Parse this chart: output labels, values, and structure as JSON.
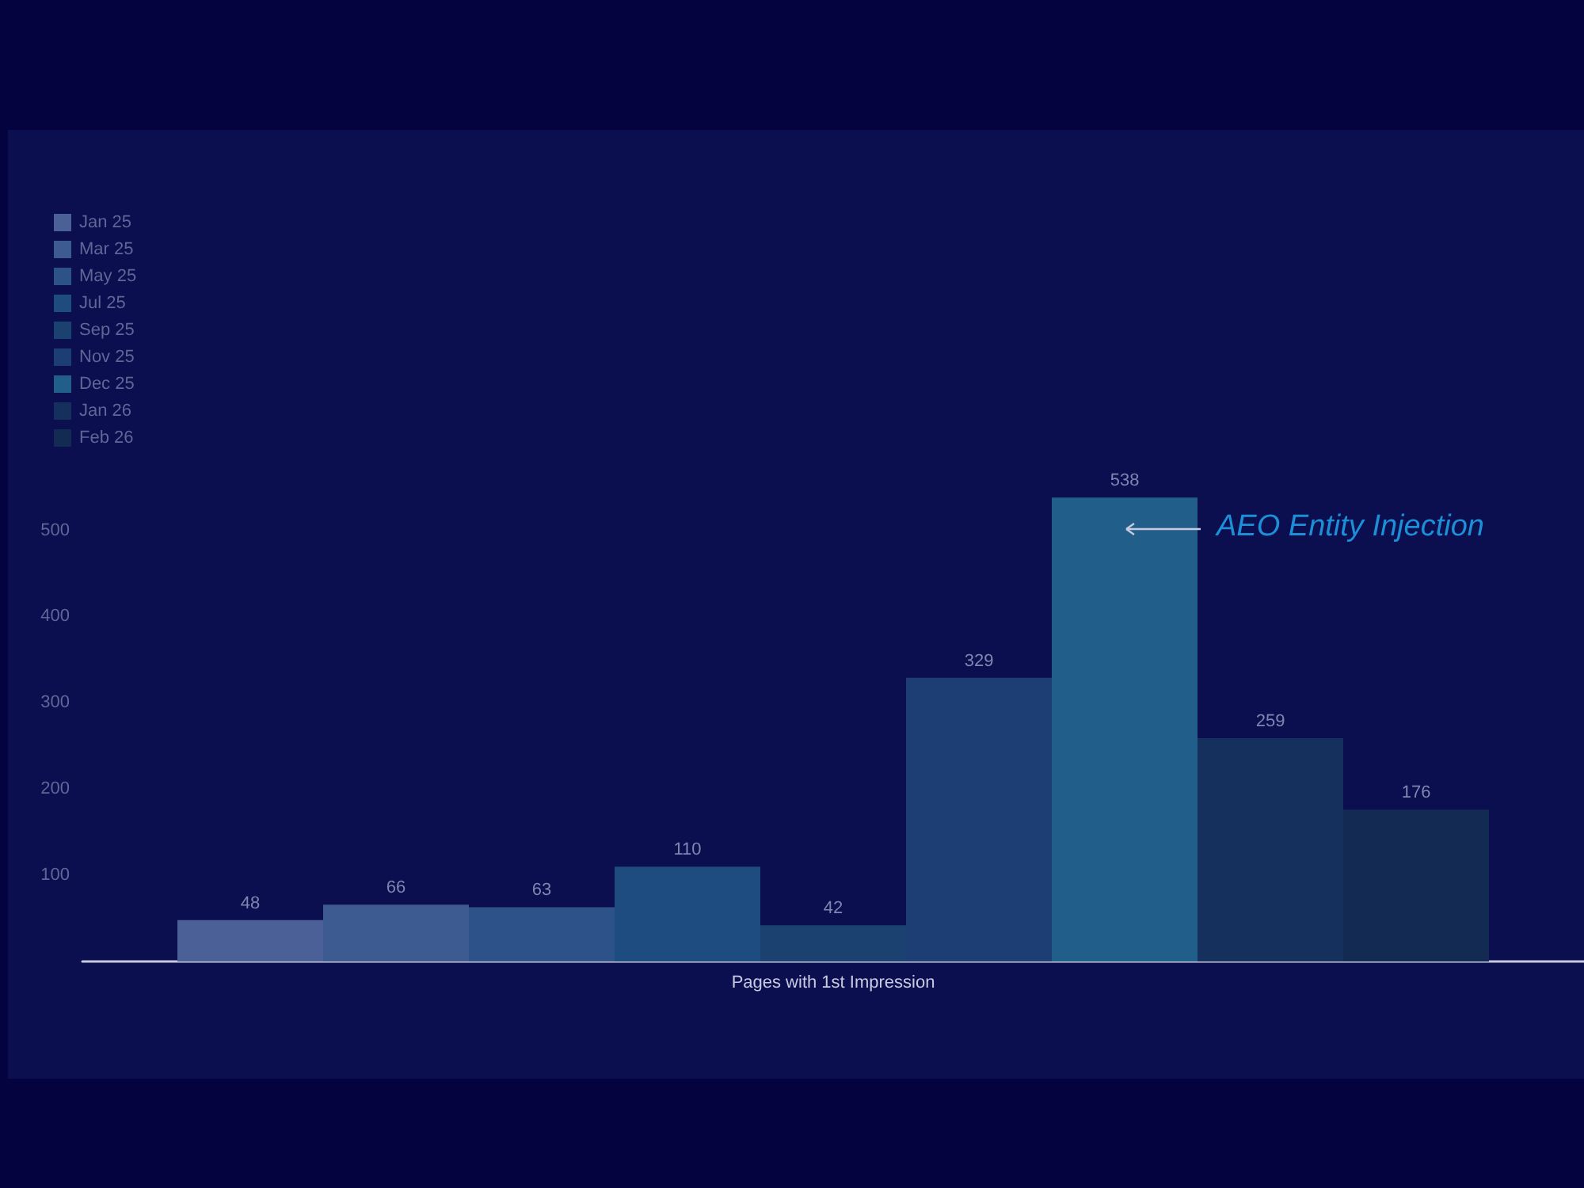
{
  "chart_data": {
    "type": "bar",
    "categories": [
      "Pages with 1st Impression"
    ],
    "series": [
      {
        "name": "Jan 25",
        "color": "#4a6097",
        "values": [
          48
        ]
      },
      {
        "name": "Mar 25",
        "color": "#3d5a91",
        "values": [
          66
        ]
      },
      {
        "name": "May 25",
        "color": "#2d5289",
        "values": [
          63
        ]
      },
      {
        "name": "Jul 25",
        "color": "#1e4b80",
        "values": [
          110
        ]
      },
      {
        "name": "Sep 25",
        "color": "#1b4170",
        "values": [
          42
        ]
      },
      {
        "name": "Nov 25",
        "color": "#1c3e74",
        "values": [
          329
        ]
      },
      {
        "name": "Dec 25",
        "color": "#215e8a",
        "values": [
          538
        ]
      },
      {
        "name": "Jan 26",
        "color": "#16305e",
        "values": [
          259
        ]
      },
      {
        "name": "Feb 26",
        "color": "#132b52",
        "values": [
          176
        ]
      }
    ],
    "ylim": [
      0,
      540
    ],
    "yticks": [
      100,
      200,
      300,
      400,
      500
    ],
    "grid": false,
    "legend": "top left",
    "data_labels": true,
    "annotations": [
      "AEO Entity Injection"
    ]
  }
}
